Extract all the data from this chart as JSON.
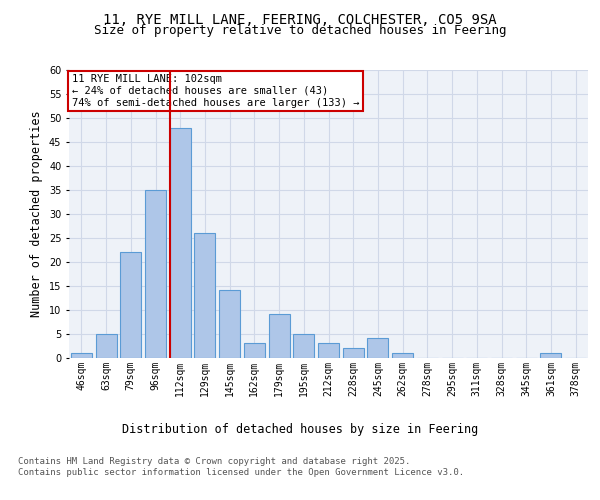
{
  "title_line1": "11, RYE MILL LANE, FEERING, COLCHESTER, CO5 9SA",
  "title_line2": "Size of property relative to detached houses in Feering",
  "xlabel": "Distribution of detached houses by size in Feering",
  "ylabel": "Number of detached properties",
  "bin_labels": [
    "46sqm",
    "63sqm",
    "79sqm",
    "96sqm",
    "112sqm",
    "129sqm",
    "145sqm",
    "162sqm",
    "179sqm",
    "195sqm",
    "212sqm",
    "228sqm",
    "245sqm",
    "262sqm",
    "278sqm",
    "295sqm",
    "311sqm",
    "328sqm",
    "345sqm",
    "361sqm",
    "378sqm"
  ],
  "bar_values": [
    1,
    5,
    22,
    35,
    48,
    26,
    14,
    3,
    9,
    5,
    3,
    2,
    4,
    1,
    0,
    0,
    0,
    0,
    0,
    1,
    0
  ],
  "bar_color": "#aec6e8",
  "bar_edge_color": "#5b9bd5",
  "grid_color": "#d0d8e8",
  "background_color": "#eef2f8",
  "vline_color": "#cc0000",
  "annotation_text": "11 RYE MILL LANE: 102sqm\n← 24% of detached houses are smaller (43)\n74% of semi-detached houses are larger (133) →",
  "annotation_box_color": "#ffffff",
  "annotation_box_edge": "#cc0000",
  "ylim": [
    0,
    60
  ],
  "yticks": [
    0,
    5,
    10,
    15,
    20,
    25,
    30,
    35,
    40,
    45,
    50,
    55,
    60
  ],
  "footer_text": "Contains HM Land Registry data © Crown copyright and database right 2025.\nContains public sector information licensed under the Open Government Licence v3.0.",
  "title_fontsize": 10,
  "subtitle_fontsize": 9,
  "axis_label_fontsize": 8.5,
  "tick_fontsize": 7,
  "annotation_fontsize": 7.5,
  "footer_fontsize": 6.5
}
